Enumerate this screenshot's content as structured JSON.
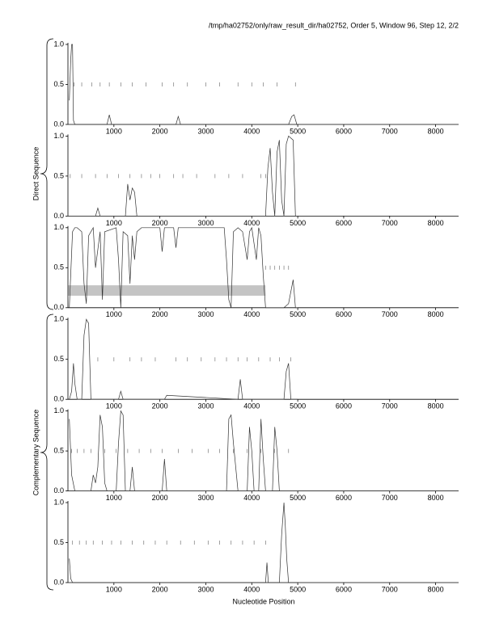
{
  "header": "/tmp/ha02752/only/raw_result_dir/ha02752, Order 5, Window 96, Step 12, 2/2",
  "xlabel": "Nucleotide Position",
  "groups": [
    "Direct Sequence",
    "Complementary Sequence"
  ],
  "chart_data": [
    {
      "type": "line",
      "color": "#333333",
      "xlim": [
        0,
        8500
      ],
      "ylim": [
        0,
        1
      ],
      "xticks": [
        1000,
        2000,
        3000,
        4000,
        5000,
        6000,
        7000,
        8000
      ],
      "yticks": [
        {
          "value": 0,
          "label": "0.0"
        },
        0.5,
        {
          "value": 1,
          "label": "1.0"
        }
      ],
      "x": [
        30,
        60,
        80,
        100,
        120,
        150,
        400,
        850,
        900,
        950,
        2350,
        2400,
        2450,
        4800,
        4870,
        4920,
        4980,
        5000
      ],
      "values": [
        0.3,
        0.8,
        1.0,
        1.0,
        0.05,
        0,
        0,
        0,
        0.12,
        0,
        0,
        0.1,
        0,
        0,
        0.1,
        0.12,
        0,
        0
      ],
      "half_marks": [
        130,
        300,
        520,
        700,
        900,
        1150,
        1400,
        1700,
        2050,
        2300,
        2600,
        3000,
        3300,
        3700,
        4000,
        4250,
        4550,
        4950
      ]
    },
    {
      "type": "line",
      "color": "#333333",
      "xlim": [
        0,
        8500
      ],
      "ylim": [
        0,
        1
      ],
      "xticks": [
        1000,
        2000,
        3000,
        4000,
        5000,
        6000,
        7000,
        8000
      ],
      "yticks": [
        {
          "value": 0,
          "label": "0.0"
        },
        0.5,
        {
          "value": 1,
          "label": "1.0"
        }
      ],
      "x": [
        30,
        600,
        650,
        700,
        1250,
        1300,
        1350,
        1400,
        1450,
        1500,
        4300,
        4350,
        4400,
        4450,
        4500,
        4550,
        4600,
        4650,
        4700,
        4750,
        4800,
        4900,
        4950,
        5000
      ],
      "values": [
        0,
        0,
        0.1,
        0,
        0,
        0.4,
        0.2,
        0.35,
        0.3,
        0,
        0,
        0.6,
        0.85,
        0.3,
        0,
        0.8,
        0.95,
        0.2,
        0,
        0.9,
        1.0,
        0.95,
        0,
        0
      ],
      "half_marks": [
        50,
        300,
        600,
        850,
        1100,
        1350,
        1600,
        1800,
        2000,
        2300,
        2500,
        2800,
        3200,
        3500,
        3800,
        4200,
        4300
      ]
    },
    {
      "type": "line",
      "color": "#333333",
      "xlim": [
        0,
        8500
      ],
      "ylim": [
        0,
        1
      ],
      "xticks": [
        1000,
        2000,
        3000,
        4000,
        5000,
        6000,
        7000,
        8000
      ],
      "yticks": [
        {
          "value": 0,
          "label": "0.0"
        },
        0.5,
        {
          "value": 1,
          "label": "1.0"
        }
      ],
      "x": [
        30,
        100,
        150,
        200,
        300,
        350,
        400,
        450,
        550,
        600,
        700,
        750,
        800,
        1050,
        1100,
        1150,
        1200,
        1300,
        1350,
        1400,
        1450,
        1500,
        1600,
        2000,
        2050,
        2100,
        2300,
        2350,
        2400,
        3400,
        3450,
        3500,
        3550,
        3600,
        3700,
        3800,
        3900,
        3950,
        4000,
        4100,
        4150,
        4200,
        4250,
        4300,
        4700,
        4800,
        4850,
        4900,
        4950,
        5000
      ],
      "values": [
        0.0,
        0.95,
        1.0,
        1.0,
        0.95,
        0.3,
        0.05,
        0.9,
        1.0,
        0.5,
        0.95,
        0.1,
        0.95,
        1.0,
        0.6,
        0.0,
        0.95,
        0.9,
        0.3,
        0.9,
        0.6,
        0.95,
        1.0,
        1.0,
        0.7,
        1.0,
        1.0,
        0.75,
        1.0,
        1.0,
        0.6,
        0.1,
        0.0,
        0.95,
        1.0,
        0.95,
        0.6,
        0.95,
        1.0,
        0.6,
        1.0,
        0.9,
        0.4,
        0.0,
        0.0,
        0.05,
        0.2,
        0.35,
        0,
        0
      ],
      "half_marks": [
        4300,
        4400,
        4500,
        4600,
        4700,
        4800
      ],
      "highlight": {
        "xlim": [
          0,
          4300
        ],
        "ylim": [
          0.15,
          0.28
        ]
      }
    },
    {
      "type": "line",
      "color": "#333333",
      "xlim": [
        0,
        8500
      ],
      "ylim": [
        0,
        1
      ],
      "xticks": [
        1000,
        2000,
        3000,
        4000,
        5000,
        6000,
        7000,
        8000
      ],
      "yticks": [
        {
          "value": 0,
          "label": "0.0"
        },
        0.5,
        {
          "value": 1,
          "label": "1.0"
        }
      ],
      "x": [
        30,
        80,
        120,
        150,
        200,
        300,
        350,
        400,
        450,
        500,
        1100,
        1150,
        1200,
        2100,
        2150,
        3700,
        3750,
        3800,
        4700,
        4750,
        4800,
        4850,
        5000
      ],
      "values": [
        0,
        0.1,
        0.45,
        0.2,
        0,
        0,
        0.8,
        1.0,
        0.95,
        0,
        0,
        0.1,
        0,
        0,
        0.05,
        0,
        0.25,
        0,
        0,
        0.35,
        0.45,
        0,
        0
      ],
      "half_marks": [
        650,
        1000,
        1350,
        1600,
        1900,
        2350,
        2600,
        2900,
        3200,
        3450,
        3700,
        3900,
        4150,
        4400,
        4600,
        4850
      ]
    },
    {
      "type": "line",
      "color": "#333333",
      "xlim": [
        0,
        8500
      ],
      "ylim": [
        0,
        1
      ],
      "xticks": [
        1000,
        2000,
        3000,
        4000,
        5000,
        6000,
        7000,
        8000
      ],
      "yticks": [
        {
          "value": 0,
          "label": "0.0"
        },
        0.5,
        {
          "value": 1,
          "label": "1.0"
        }
      ],
      "x": [
        30,
        80,
        150,
        500,
        550,
        600,
        650,
        700,
        750,
        800,
        850,
        1050,
        1100,
        1150,
        1200,
        1250,
        1350,
        1400,
        1450,
        2050,
        2100,
        2150,
        3450,
        3500,
        3550,
        3600,
        3650,
        3700,
        3900,
        3950,
        4000,
        4050,
        4150,
        4200,
        4250,
        4300,
        4450,
        4500,
        4550,
        4600,
        5000
      ],
      "values": [
        0.9,
        0.2,
        0,
        0,
        0.2,
        0.1,
        0.3,
        0.95,
        0.8,
        0.1,
        0,
        0,
        0.6,
        1.0,
        0.95,
        0,
        0,
        0.3,
        0,
        0,
        0.4,
        0,
        0,
        0.9,
        0.95,
        0.6,
        0.3,
        0,
        0,
        0.8,
        0.5,
        0,
        0,
        0.9,
        0.4,
        0,
        0,
        0.8,
        0.5,
        0,
        0
      ],
      "half_marks": [
        80,
        200,
        350,
        500,
        800,
        1050,
        1300,
        1550,
        1800,
        2050,
        2400,
        2700,
        3050,
        3300,
        3600,
        3900,
        4200,
        4500,
        4800
      ]
    },
    {
      "type": "line",
      "color": "#333333",
      "xlim": [
        0,
        8500
      ],
      "ylim": [
        0,
        1
      ],
      "xticks": [
        1000,
        2000,
        3000,
        4000,
        5000,
        6000,
        7000,
        8000
      ],
      "yticks": [
        {
          "value": 0,
          "label": "0.0"
        },
        0.5,
        {
          "value": 1,
          "label": "1.0"
        }
      ],
      "x": [
        30,
        60,
        100,
        4300,
        4330,
        4360,
        4600,
        4650,
        4700,
        4730,
        4760,
        4800,
        5000
      ],
      "values": [
        0.3,
        0.05,
        0,
        0,
        0.25,
        0,
        0,
        0.6,
        1.0,
        0.7,
        0.3,
        0,
        0
      ],
      "half_marks": [
        100,
        250,
        400,
        550,
        750,
        950,
        1150,
        1400,
        1650,
        1900,
        2150,
        2450,
        2750,
        3050,
        3300,
        3550,
        3800,
        4050,
        4300
      ]
    }
  ]
}
